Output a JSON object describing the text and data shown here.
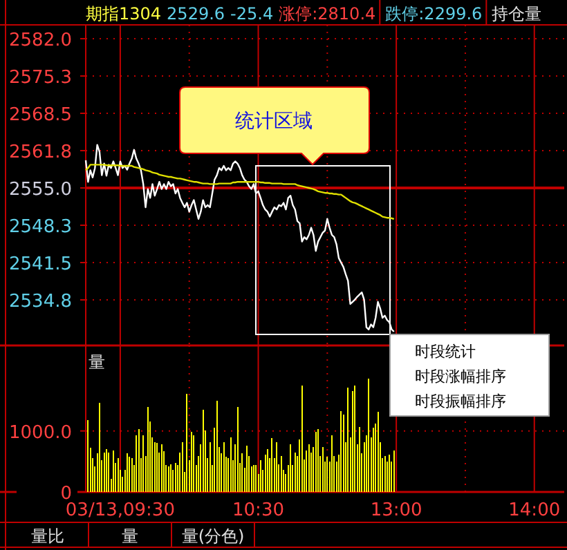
{
  "chart_data": [
    {
      "type": "line",
      "title": "期指1304",
      "annotations": [
        "统计区域",
        "2529.6",
        "-25.4",
        "涨停:2810.4",
        "跌停:2299.6",
        "持仓量"
      ],
      "categories": [
        null,
        null,
        null,
        null,
        null,
        null,
        null,
        null,
        null,
        null,
        null,
        null,
        null,
        null,
        null,
        null,
        null,
        null,
        null,
        null,
        null,
        null,
        null,
        null,
        null,
        null,
        null,
        null,
        null,
        null,
        null,
        null,
        null,
        null,
        null,
        null,
        null,
        null,
        null,
        null,
        null,
        null,
        null,
        null,
        null,
        null,
        null,
        null,
        null,
        null,
        null,
        null,
        null,
        null,
        null,
        null,
        null,
        null,
        null,
        null,
        null,
        null,
        null,
        null,
        null,
        null,
        null,
        null,
        null,
        null,
        null,
        null,
        null,
        null,
        null,
        null,
        null,
        null,
        null,
        null,
        null,
        null,
        null,
        null,
        null,
        null,
        null,
        null,
        null,
        null,
        null,
        null,
        null,
        null,
        null,
        null,
        null,
        null,
        null,
        null,
        null,
        null,
        null,
        null,
        null,
        null,
        null,
        null,
        null,
        null,
        null,
        null,
        null,
        null,
        null,
        null,
        null,
        null,
        null,
        null,
        null,
        null,
        null,
        null,
        null,
        null,
        null,
        null,
        null,
        null,
        null,
        null,
        null,
        null,
        null,
        null,
        null,
        null,
        null,
        null,
        null,
        null,
        null,
        null,
        null,
        null,
        null,
        null,
        null,
        null,
        null,
        null,
        null,
        null,
        null,
        null,
        null,
        null,
        null,
        null,
        null,
        null,
        null,
        null,
        null,
        null,
        null,
        null,
        null,
        null,
        null,
        null,
        null,
        null,
        null,
        null,
        null,
        null,
        null,
        null,
        null,
        null,
        null,
        null,
        null,
        null,
        null,
        null,
        null,
        null,
        null,
        null,
        null,
        null,
        null,
        null,
        null,
        null,
        null,
        null,
        null,
        null,
        null,
        null,
        null,
        null,
        null,
        null
      ],
      "ylim": [
        2526.5,
        2584.5
      ],
      "yticks": [
        {
          "value": 2582.0,
          "label": "2582.0"
        },
        {
          "value": 2575.25,
          "label": "2575.3"
        },
        {
          "value": 2568.5,
          "label": "2568.5"
        },
        {
          "value": 2561.75,
          "label": "2561.8"
        },
        {
          "value": 2555.0,
          "label": "2555.0"
        },
        {
          "value": 2548.25,
          "label": "2548.3"
        },
        {
          "value": 2541.5,
          "label": "2541.5"
        },
        {
          "value": 2534.75,
          "label": "2534.8"
        }
      ],
      "grid": true,
      "tick_labels": "y",
      "ref_lines": [
        {
          "axis": "y",
          "value": 2555.0,
          "color": "#c00000"
        }
      ],
      "series": [
        {
          "color": "#ffffff",
          "values": [
            2560.0,
            2556.1,
            2558.2,
            2556.9,
            2558.6,
            2562.8,
            2561.5,
            2557.3,
            2559.4,
            2557.2,
            2559.2,
            2558.6,
            2559.8,
            2558.6,
            2557.3,
            2559.8,
            2558.6,
            2559.0,
            2558.3,
            2559.4,
            2560.3,
            2561.9,
            2560.3,
            2559.4,
            2558.2,
            2555.7,
            2551.5,
            2554.8,
            2553.2,
            2555.7,
            2553.6,
            2554.8,
            2556.1,
            2554.8,
            2555.7,
            2554.8,
            2556.1,
            2555.3,
            2555.7,
            2554.0,
            2554.8,
            2553.2,
            2552.3,
            2551.5,
            2552.3,
            2550.7,
            2551.9,
            2552.8,
            2551.1,
            2549.4,
            2550.7,
            2552.8,
            2551.5,
            2551.9,
            2551.5,
            2554.0,
            2556.5,
            2557.3,
            2558.6,
            2558.2,
            2559.0,
            2558.2,
            2558.6,
            2558.2,
            2559.4,
            2559.8,
            2559.4,
            2558.6,
            2557.3,
            2556.5,
            2556.1,
            2555.3,
            2554.8,
            2555.7,
            2554.0,
            2554.4,
            2553.2,
            2551.9,
            2551.1,
            2550.7,
            2549.8,
            2550.7,
            2551.5,
            2551.1,
            2551.9,
            2551.7,
            2552.3,
            2551.1,
            2553.2,
            2553.6,
            2551.9,
            2551.1,
            2549.0,
            2548.6,
            2545.3,
            2546.1,
            2545.7,
            2546.5,
            2547.8,
            2546.5,
            2543.6,
            2545.3,
            2546.1,
            2546.9,
            2547.3,
            2549.4,
            2547.8,
            2546.5,
            2546.1,
            2544.8,
            2542.3,
            2541.5,
            2540.7,
            2539.4,
            2538.2,
            2534.0,
            2534.4,
            2534.8,
            2535.3,
            2535.7,
            2536.1,
            2534.8,
            2529.8,
            2529.4,
            2530.3,
            2529.8,
            2531.5,
            2534.4,
            2533.2,
            2531.5,
            2531.9,
            2531.1,
            2530.7,
            2529.4,
            2529.0,
            null,
            null,
            null,
            null,
            null,
            null,
            null,
            null,
            null,
            null,
            null,
            null,
            null,
            null,
            null,
            null,
            null,
            null,
            null,
            null,
            null,
            null,
            null,
            null,
            null,
            null,
            null,
            null,
            null,
            null,
            null,
            null,
            null,
            null,
            null,
            null,
            null,
            null,
            null,
            null,
            null,
            null,
            null,
            null,
            null,
            null,
            null,
            null,
            null,
            null,
            null,
            null,
            null,
            null,
            null,
            null,
            null,
            null,
            null,
            null,
            null,
            null,
            null,
            null,
            null,
            null,
            null,
            null,
            null,
            null,
            null,
            null,
            null
          ]
        },
        {
          "color": "#e0e000",
          "values": [
            2558.2,
            2558.6,
            2559.2,
            2559.2,
            2559.2,
            2559.2,
            2559.2,
            2559.2,
            2559.2,
            2559.1,
            2559.1,
            2559.1,
            2559.1,
            2559.1,
            2559.1,
            2559.0,
            2559.0,
            2559.0,
            2559.0,
            2559.0,
            2559.0,
            2558.8,
            2558.7,
            2558.6,
            2558.5,
            2558.4,
            2558.2,
            2558.1,
            2558.0,
            2557.8,
            2557.7,
            2557.6,
            2557.4,
            2557.3,
            2557.2,
            2557.1,
            2557.0,
            2557.0,
            2556.9,
            2556.8,
            2556.7,
            2556.7,
            2556.6,
            2556.5,
            2556.4,
            2556.3,
            2556.2,
            2556.1,
            2556.1,
            2556.0,
            2555.9,
            2555.8,
            2555.8,
            2555.8,
            2555.7,
            2555.7,
            2555.7,
            2555.7,
            2555.8,
            2555.8,
            2555.8,
            2555.8,
            2555.8,
            2555.8,
            2556.0,
            2556.0,
            2556.1,
            2556.1,
            2556.1,
            2556.1,
            2556.1,
            2556.1,
            2556.1,
            2556.1,
            2556.1,
            2556.1,
            2556.0,
            2556.0,
            2555.9,
            2555.9,
            2555.9,
            2555.8,
            2555.8,
            2555.8,
            2555.8,
            2555.8,
            2555.7,
            2555.7,
            2555.7,
            2555.7,
            2555.7,
            2555.7,
            2555.5,
            2555.4,
            2555.3,
            2555.2,
            2555.1,
            2555.0,
            2554.9,
            2554.8,
            2554.6,
            2554.4,
            2554.3,
            2554.2,
            2554.1,
            2554.1,
            2554.0,
            2554.0,
            2553.9,
            2553.9,
            2553.8,
            2553.8,
            2553.5,
            2553.2,
            2552.9,
            2552.6,
            2552.4,
            2552.3,
            2552.1,
            2551.9,
            2551.7,
            2551.5,
            2551.3,
            2551.1,
            2550.9,
            2550.7,
            2550.5,
            2550.3,
            2550.1,
            2549.8,
            2549.7,
            2549.6,
            2549.6,
            2549.5,
            2549.4,
            null,
            null,
            null,
            null,
            null,
            null,
            null,
            null,
            null,
            null,
            null,
            null,
            null,
            null,
            null,
            null,
            null,
            null,
            null,
            null,
            null,
            null,
            null,
            null,
            null,
            null,
            null,
            null,
            null,
            null,
            null,
            null,
            null,
            null,
            null,
            null,
            null,
            null,
            null,
            null,
            null,
            null,
            null,
            null,
            null,
            null,
            null,
            null,
            null,
            null,
            null,
            null,
            null,
            null,
            null,
            null,
            null,
            null,
            null,
            null,
            null,
            null,
            null,
            null,
            null,
            null,
            null,
            null,
            null,
            null,
            null,
            null,
            null
          ]
        }
      ]
    },
    {
      "type": "bar",
      "ylabel": "量",
      "annotations": [
        "时段统计",
        "时段涨幅排序",
        "时段振幅排序",
        "量比",
        "量",
        "量(分色)"
      ],
      "categories": [
        null,
        null,
        null,
        null,
        null,
        null,
        null,
        null,
        null,
        null,
        null,
        null,
        null,
        null,
        null,
        "03/13,09:30",
        null,
        null,
        null,
        null,
        null,
        null,
        null,
        null,
        null,
        null,
        null,
        null,
        null,
        null,
        null,
        null,
        null,
        null,
        null,
        null,
        null,
        null,
        null,
        null,
        null,
        null,
        null,
        null,
        null,
        null,
        null,
        null,
        null,
        null,
        null,
        null,
        null,
        null,
        null,
        null,
        null,
        null,
        null,
        null,
        null,
        null,
        null,
        null,
        null,
        null,
        null,
        null,
        null,
        null,
        null,
        null,
        null,
        null,
        null,
        "10:30",
        null,
        null,
        null,
        null,
        null,
        null,
        null,
        null,
        null,
        null,
        null,
        null,
        null,
        null,
        null,
        null,
        null,
        null,
        null,
        null,
        null,
        null,
        null,
        null,
        null,
        null,
        null,
        null,
        null,
        null,
        null,
        null,
        null,
        null,
        null,
        null,
        null,
        null,
        null,
        null,
        null,
        null,
        null,
        null,
        null,
        null,
        null,
        null,
        null,
        null,
        null,
        null,
        null,
        null,
        null,
        null,
        null,
        null,
        null,
        "13:00",
        null,
        null,
        null,
        null,
        null,
        null,
        null,
        null,
        null,
        null,
        null,
        null,
        null,
        null,
        null,
        null,
        null,
        null,
        null,
        null,
        null,
        null,
        null,
        null,
        null,
        null,
        null,
        null,
        null,
        null,
        null,
        null,
        null,
        null,
        null,
        null,
        null,
        null,
        null,
        null,
        null,
        null,
        null,
        null,
        null,
        null,
        null,
        null,
        null,
        null,
        null,
        null,
        null,
        null,
        null,
        null,
        null,
        null,
        null,
        "14:00",
        null,
        null,
        null,
        null,
        null,
        null,
        null,
        null,
        null,
        null,
        null,
        null
      ],
      "ylim": [
        0,
        2400
      ],
      "yticks": [
        0,
        {
          "value": 1000,
          "label": "1000.0"
        }
      ],
      "grid": true,
      "series": [
        {
          "color": "#ffff00",
          "values": [
            null,
            1180,
            730,
            550,
            420,
            630,
            1460,
            520,
            650,
            700,
            650,
            210,
            680,
            480,
            550,
            360,
            250,
            360,
            630,
            580,
            550,
            440,
            930,
            1030,
            550,
            930,
            590,
            1390,
            1160,
            890,
            820,
            800,
            650,
            780,
            670,
            440,
            420,
            450,
            360,
            480,
            440,
            650,
            820,
            330,
            1610,
            520,
            990,
            930,
            440,
            590,
            780,
            1350,
            1010,
            550,
            820,
            440,
            1050,
            1490,
            740,
            630,
            820,
            580,
            550,
            890,
            520,
            780,
            1390,
            480,
            630,
            400,
            760,
            590,
            420,
            440,
            440,
            290,
            520,
            360,
            610,
            700,
            550,
            880,
            550,
            820,
            450,
            590,
            360,
            290,
            440,
            780,
            440,
            650,
            590,
            860,
            1740,
            530,
            680,
            780,
            650,
            740,
            990,
            1030,
            590,
            740,
            500,
            580,
            500,
            930,
            590,
            500,
            610,
            1330,
            1270,
            820,
            1710,
            890,
            1650,
            1740,
            780,
            1060,
            630,
            820,
            930,
            1860,
            890,
            1050,
            1120,
            1310,
            820,
            550,
            590,
            500,
            610,
            500,
            680,
            null,
            null,
            null,
            null,
            null,
            null,
            null,
            null,
            null,
            null,
            null,
            null,
            null,
            null,
            null,
            null,
            null,
            null,
            null,
            null,
            null,
            null,
            null,
            null,
            null,
            null,
            null,
            null,
            null,
            null,
            null,
            null,
            null,
            null,
            null,
            null,
            null,
            null,
            null,
            null,
            null,
            null,
            null,
            null,
            null,
            null,
            null,
            null,
            null,
            null,
            null,
            null,
            null,
            null,
            null,
            null,
            null,
            null,
            null,
            null,
            null,
            null,
            null,
            null,
            null,
            null,
            null,
            null,
            null,
            null,
            null,
            null,
            null
          ]
        }
      ]
    }
  ]
}
